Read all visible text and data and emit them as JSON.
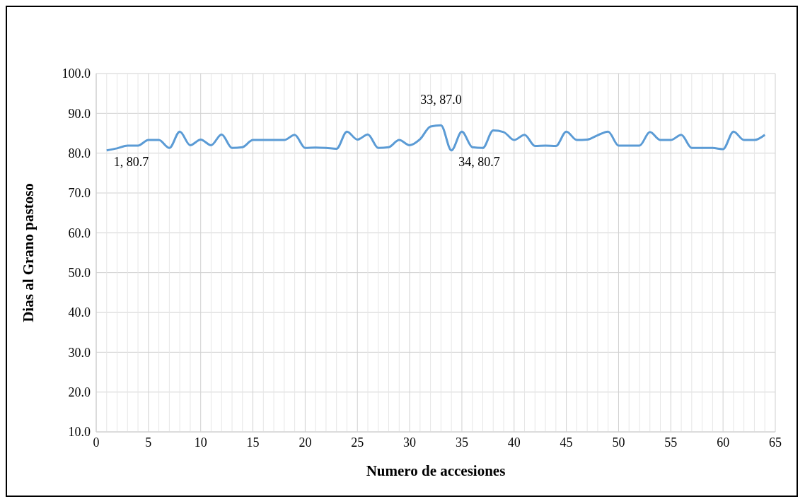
{
  "chart_data": {
    "type": "line",
    "xlabel": "Numero de accesiones",
    "ylabel": "Dias al Grano pastoso",
    "x": [
      1,
      2,
      3,
      4,
      5,
      6,
      7,
      8,
      9,
      10,
      11,
      12,
      13,
      14,
      15,
      16,
      17,
      18,
      19,
      20,
      21,
      22,
      23,
      24,
      25,
      26,
      27,
      28,
      29,
      30,
      31,
      32,
      33,
      34,
      35,
      36,
      37,
      38,
      39,
      40,
      41,
      42,
      43,
      44,
      45,
      46,
      47,
      48,
      49,
      50,
      51,
      52,
      53,
      54,
      55,
      56,
      57,
      58,
      59,
      60,
      61,
      62,
      63,
      64
    ],
    "series": [
      {
        "color": "#5b9bd5",
        "values": [
          80.7,
          81.2,
          81.9,
          81.9,
          83.3,
          83.3,
          81.3,
          85.4,
          82,
          83.4,
          82,
          84.7,
          81.3,
          81.5,
          83.3,
          83.3,
          83.3,
          83.3,
          84.6,
          81.3,
          81.4,
          81.3,
          81.1,
          85.4,
          83.4,
          84.7,
          81.3,
          81.5,
          83.3,
          82,
          83.5,
          86.7,
          87.0,
          80.7,
          85.4,
          81.5,
          81.3,
          85.7,
          85.3,
          83.3,
          84.6,
          81.8,
          81.9,
          81.8,
          85.4,
          83.3,
          83.4,
          84.5,
          85.4,
          81.9,
          81.9,
          81.9,
          85.3,
          83.3,
          83.3,
          84.6,
          81.3,
          81.3,
          81.3,
          81.0,
          85.4,
          83.3,
          83.3,
          84.6
        ],
        "value_labels": [
          "1, 80.7",
          null,
          null,
          null,
          null,
          null,
          null,
          null,
          null,
          null,
          null,
          null,
          null,
          null,
          null,
          null,
          null,
          null,
          null,
          null,
          null,
          null,
          null,
          null,
          null,
          null,
          null,
          null,
          null,
          null,
          null,
          null,
          "33, 87.0",
          "34, 80.7",
          null,
          null,
          null,
          null,
          null,
          null,
          null,
          null,
          null,
          null,
          null,
          null,
          null,
          null,
          null,
          null,
          null,
          null,
          null,
          null,
          null,
          null,
          null,
          null,
          null,
          null,
          null,
          null,
          null,
          null
        ]
      }
    ],
    "xlim": [
      0,
      65
    ],
    "xticks": [
      0,
      5,
      10,
      15,
      20,
      25,
      30,
      35,
      40,
      45,
      50,
      55,
      60,
      65
    ],
    "ylim": [
      10,
      100
    ],
    "yticks": [
      {
        "value": 10,
        "label": "10.0"
      },
      {
        "value": 20,
        "label": "20.0"
      },
      {
        "value": 30,
        "label": "30.0"
      },
      {
        "value": 40,
        "label": "40.0"
      },
      {
        "value": 50,
        "label": "50.0"
      },
      {
        "value": 60,
        "label": "60.0"
      },
      {
        "value": 70,
        "label": "70.0"
      },
      {
        "value": 80,
        "label": "80.0"
      },
      {
        "value": 90,
        "label": "90.0"
      },
      {
        "value": 100,
        "label": "100.0"
      }
    ],
    "grid": true,
    "marker": "none",
    "line_style": "solid"
  }
}
